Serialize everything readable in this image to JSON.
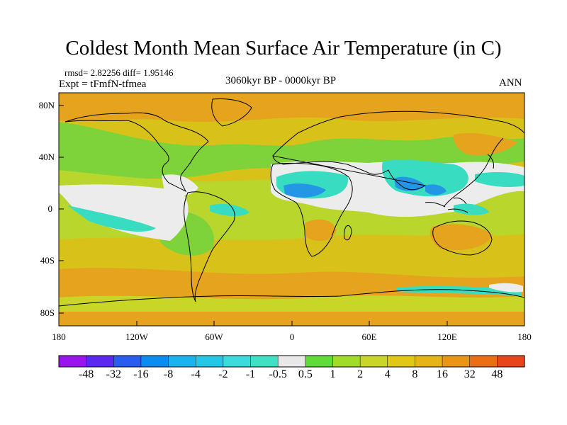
{
  "title": "Coldest Month Mean Surface Air Temperature (in C)",
  "stats_text": "rmsd= 2.82256 diff= 1.95146",
  "expt_text": "Expt = tFmfN-tfmea",
  "period_text": "3060kyr BP - 0000kyr BP",
  "season_text": "ANN",
  "lat_labels": [
    "80N",
    "40N",
    "0",
    "40S",
    "80S"
  ],
  "lon_labels": [
    "180",
    "120W",
    "60W",
    "0",
    "60E",
    "120E",
    "180"
  ],
  "colorbar": {
    "colors": [
      "#9a14f0",
      "#5a28f0",
      "#2a5cf0",
      "#0a8cf0",
      "#18b4f0",
      "#24c8e6",
      "#3cdcdc",
      "#40e0c4",
      "#e8e8e8",
      "#5fdc38",
      "#a0dc28",
      "#c8d628",
      "#e0c814",
      "#e6b414",
      "#ea9614",
      "#ec6e14",
      "#e6461a"
    ],
    "labels": [
      "-48",
      "-32",
      "-16",
      "-8",
      "-4",
      "-2",
      "-1",
      "-0.5",
      "0.5",
      "1",
      "2",
      "4",
      "8",
      "16",
      "32",
      "48"
    ]
  },
  "palette": {
    "orange": "#e6a41e",
    "yellow_orange": "#d8c21a",
    "yellow_green": "#b8d62c",
    "green": "#7ed23a",
    "cyan": "#38dcc0",
    "blue": "#2496e6",
    "light_gray": "#ececec"
  }
}
